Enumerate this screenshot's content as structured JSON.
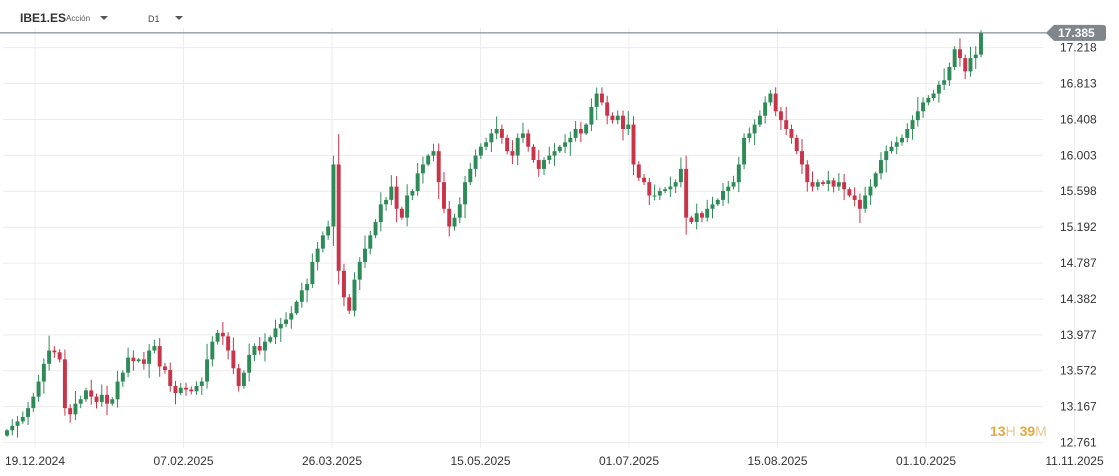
{
  "header": {
    "symbol": "IBE1.ES",
    "asset_type": "Acción",
    "timeframe": "D1"
  },
  "last_price_label": "17.385",
  "countdown": {
    "hours": "13",
    "hours_unit": "H",
    "minutes": "39",
    "minutes_unit": "M"
  },
  "colors": {
    "up": "#2e8b57",
    "down": "#c8344a",
    "price_badge": "#7f868c",
    "grid": "#ececec"
  },
  "chart_data": {
    "type": "candlestick",
    "title": "",
    "xlabel": "",
    "ylabel": "",
    "ylim": [
      12.7,
      17.44
    ],
    "grid": true,
    "current_price": 17.385,
    "y_ticks": [
      "17.218",
      "16.813",
      "16.408",
      "16.003",
      "15.598",
      "15.192",
      "14.787",
      "14.382",
      "13.977",
      "13.572",
      "13.167",
      "12.761"
    ],
    "x_ticks": [
      "19.12.2024",
      "07.02.2025",
      "26.03.2025",
      "15.05.2025",
      "01.07.2025",
      "15.08.2025",
      "01.10.2025",
      "11.11.2025"
    ],
    "closes": [
      12.9,
      12.95,
      13.0,
      13.05,
      13.15,
      13.28,
      13.45,
      13.65,
      13.8,
      13.78,
      13.7,
      13.15,
      13.08,
      13.2,
      13.25,
      13.35,
      13.28,
      13.22,
      13.3,
      13.2,
      13.25,
      13.45,
      13.55,
      13.72,
      13.68,
      13.7,
      13.65,
      13.8,
      13.85,
      13.62,
      13.58,
      13.4,
      13.32,
      13.38,
      13.36,
      13.34,
      13.4,
      13.45,
      13.7,
      13.9,
      14.0,
      13.96,
      13.8,
      13.6,
      13.4,
      13.55,
      13.75,
      13.85,
      13.8,
      13.9,
      13.95,
      14.05,
      14.1,
      14.15,
      14.22,
      14.35,
      14.48,
      14.55,
      14.8,
      14.95,
      15.1,
      15.2,
      15.9,
      14.7,
      14.4,
      14.25,
      14.6,
      14.8,
      14.95,
      15.1,
      15.25,
      15.45,
      15.5,
      15.65,
      15.4,
      15.3,
      15.55,
      15.6,
      15.8,
      15.9,
      16.0,
      16.05,
      15.7,
      15.4,
      15.2,
      15.3,
      15.45,
      15.7,
      15.85,
      16.0,
      16.1,
      16.15,
      16.25,
      16.3,
      16.2,
      16.05,
      16.0,
      16.2,
      16.25,
      16.1,
      15.95,
      15.85,
      15.95,
      16.0,
      16.05,
      16.1,
      16.15,
      16.2,
      16.3,
      16.25,
      16.35,
      16.55,
      16.7,
      16.6,
      16.45,
      16.4,
      16.45,
      16.3,
      16.35,
      15.9,
      15.75,
      15.7,
      15.55,
      15.55,
      15.6,
      15.62,
      15.65,
      15.7,
      15.85,
      15.3,
      15.25,
      15.35,
      15.3,
      15.4,
      15.45,
      15.5,
      15.6,
      15.65,
      15.7,
      15.9,
      16.2,
      16.25,
      16.35,
      16.45,
      16.6,
      16.7,
      16.5,
      16.4,
      16.3,
      16.2,
      16.05,
      15.9,
      15.7,
      15.65,
      15.7,
      15.68,
      15.72,
      15.65,
      15.7,
      15.62,
      15.55,
      15.5,
      15.4,
      15.55,
      15.65,
      15.8,
      15.95,
      16.05,
      16.1,
      16.15,
      16.2,
      16.3,
      16.4,
      16.5,
      16.6,
      16.65,
      16.7,
      16.8,
      16.85,
      17.0,
      17.2,
      17.1,
      16.95,
      17.1,
      17.14,
      17.385
    ]
  }
}
